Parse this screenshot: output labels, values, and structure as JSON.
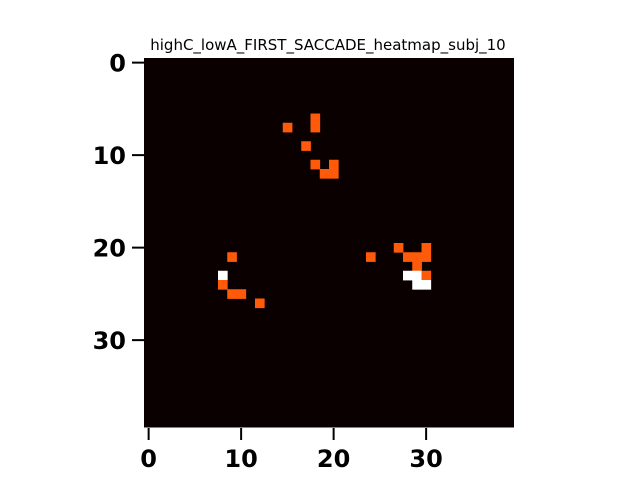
{
  "chart_data": {
    "type": "heatmap",
    "title": "highC_lowA_FIRST_SACCADE_heatmap_subj_10",
    "xlabel": "",
    "ylabel": "",
    "grid_size": [
      40,
      40
    ],
    "xlim": [
      -0.5,
      39.5
    ],
    "ylim": [
      -0.5,
      39.5
    ],
    "y_axis_inverted": true,
    "x_ticks": [
      0,
      10,
      20,
      30
    ],
    "x_tick_labels": [
      "0",
      "10",
      "20",
      "30"
    ],
    "y_ticks": [
      0,
      10,
      20,
      30
    ],
    "y_tick_labels": [
      "0",
      "10",
      "20",
      "30"
    ],
    "grid": false,
    "colors": {
      "background": "#0a0000",
      "level_1": "#ff5a0a",
      "level_2": "#ffffff"
    },
    "cells": [
      {
        "x": 15,
        "y": 7,
        "value": 1
      },
      {
        "x": 18,
        "y": 6,
        "value": 1
      },
      {
        "x": 18,
        "y": 7,
        "value": 1
      },
      {
        "x": 17,
        "y": 9,
        "value": 1
      },
      {
        "x": 18,
        "y": 11,
        "value": 1
      },
      {
        "x": 20,
        "y": 11,
        "value": 1
      },
      {
        "x": 19,
        "y": 12,
        "value": 1
      },
      {
        "x": 20,
        "y": 12,
        "value": 1
      },
      {
        "x": 9,
        "y": 21,
        "value": 1
      },
      {
        "x": 8,
        "y": 23,
        "value": 2
      },
      {
        "x": 8,
        "y": 24,
        "value": 1
      },
      {
        "x": 9,
        "y": 25,
        "value": 1
      },
      {
        "x": 10,
        "y": 25,
        "value": 1
      },
      {
        "x": 12,
        "y": 26,
        "value": 1
      },
      {
        "x": 24,
        "y": 21,
        "value": 1
      },
      {
        "x": 27,
        "y": 20,
        "value": 1
      },
      {
        "x": 30,
        "y": 20,
        "value": 1
      },
      {
        "x": 28,
        "y": 21,
        "value": 1
      },
      {
        "x": 29,
        "y": 21,
        "value": 1
      },
      {
        "x": 30,
        "y": 21,
        "value": 1
      },
      {
        "x": 29,
        "y": 22,
        "value": 1
      },
      {
        "x": 28,
        "y": 23,
        "value": 2
      },
      {
        "x": 29,
        "y": 23,
        "value": 2
      },
      {
        "x": 30,
        "y": 23,
        "value": 1
      },
      {
        "x": 29,
        "y": 24,
        "value": 2
      },
      {
        "x": 30,
        "y": 24,
        "value": 2
      }
    ]
  }
}
